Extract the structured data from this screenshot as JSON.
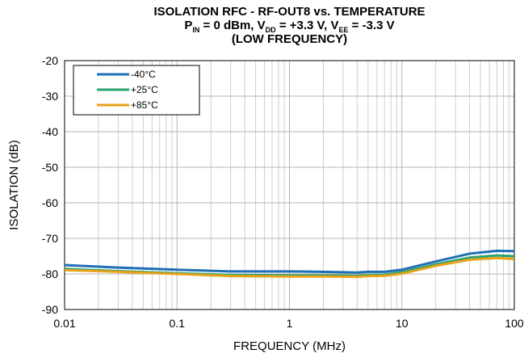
{
  "title": {
    "line1": "ISOLATION RFC - RF-OUT8 vs. TEMPERATURE",
    "line2_pin_pre": "P",
    "line2_pin_sub": "IN",
    "line2_mid1": " = 0 dBm, V",
    "line2_vdd_sub": "DD",
    "line2_mid2": " = +3.3 V, V",
    "line2_vee_sub": "EE",
    "line2_end": " = -3.3 V",
    "line3": "(LOW FREQUENCY)"
  },
  "chart_data": {
    "type": "line",
    "title": "ISOLATION RFC - RF-OUT8 vs. TEMPERATURE",
    "xlabel": "FREQUENCY (MHz)",
    "ylabel": "ISOLATION (dB)",
    "xscale": "log",
    "xlim": [
      0.01,
      100
    ],
    "ylim": [
      -90,
      -20
    ],
    "xticks": [
      "0.01",
      "0.1",
      "1",
      "10",
      "100"
    ],
    "yticks": [
      "-20",
      "-30",
      "-40",
      "-50",
      "-60",
      "-70",
      "-80",
      "-90"
    ],
    "grid": true,
    "legend_position": "top-left",
    "series": [
      {
        "name": "-40°C",
        "color": "#1f6fb4",
        "x": [
          0.01,
          0.03,
          0.1,
          0.3,
          1,
          2,
          4,
          5,
          7,
          10,
          20,
          40,
          70,
          100
        ],
        "y": [
          -77.5,
          -78.2,
          -78.8,
          -79.3,
          -79.3,
          -79.4,
          -79.6,
          -79.4,
          -79.4,
          -78.8,
          -76.5,
          -74.3,
          -73.5,
          -73.6
        ]
      },
      {
        "name": "+25°C",
        "color": "#27a372",
        "x": [
          0.01,
          0.03,
          0.1,
          0.3,
          1,
          2,
          4,
          5,
          7,
          10,
          20,
          40,
          70,
          100
        ],
        "y": [
          -78.6,
          -79.2,
          -79.8,
          -80.3,
          -80.4,
          -80.4,
          -80.5,
          -80.3,
          -80.2,
          -79.5,
          -77.3,
          -75.4,
          -74.8,
          -75.0
        ]
      },
      {
        "name": "+85°C",
        "color": "#e8a21a",
        "x": [
          0.01,
          0.03,
          0.1,
          0.3,
          1,
          2,
          4,
          5,
          7,
          10,
          20,
          40,
          70,
          100
        ],
        "y": [
          -78.9,
          -79.4,
          -80.0,
          -80.6,
          -80.7,
          -80.7,
          -80.8,
          -80.6,
          -80.5,
          -79.9,
          -77.7,
          -76.0,
          -75.5,
          -75.8
        ]
      }
    ]
  }
}
